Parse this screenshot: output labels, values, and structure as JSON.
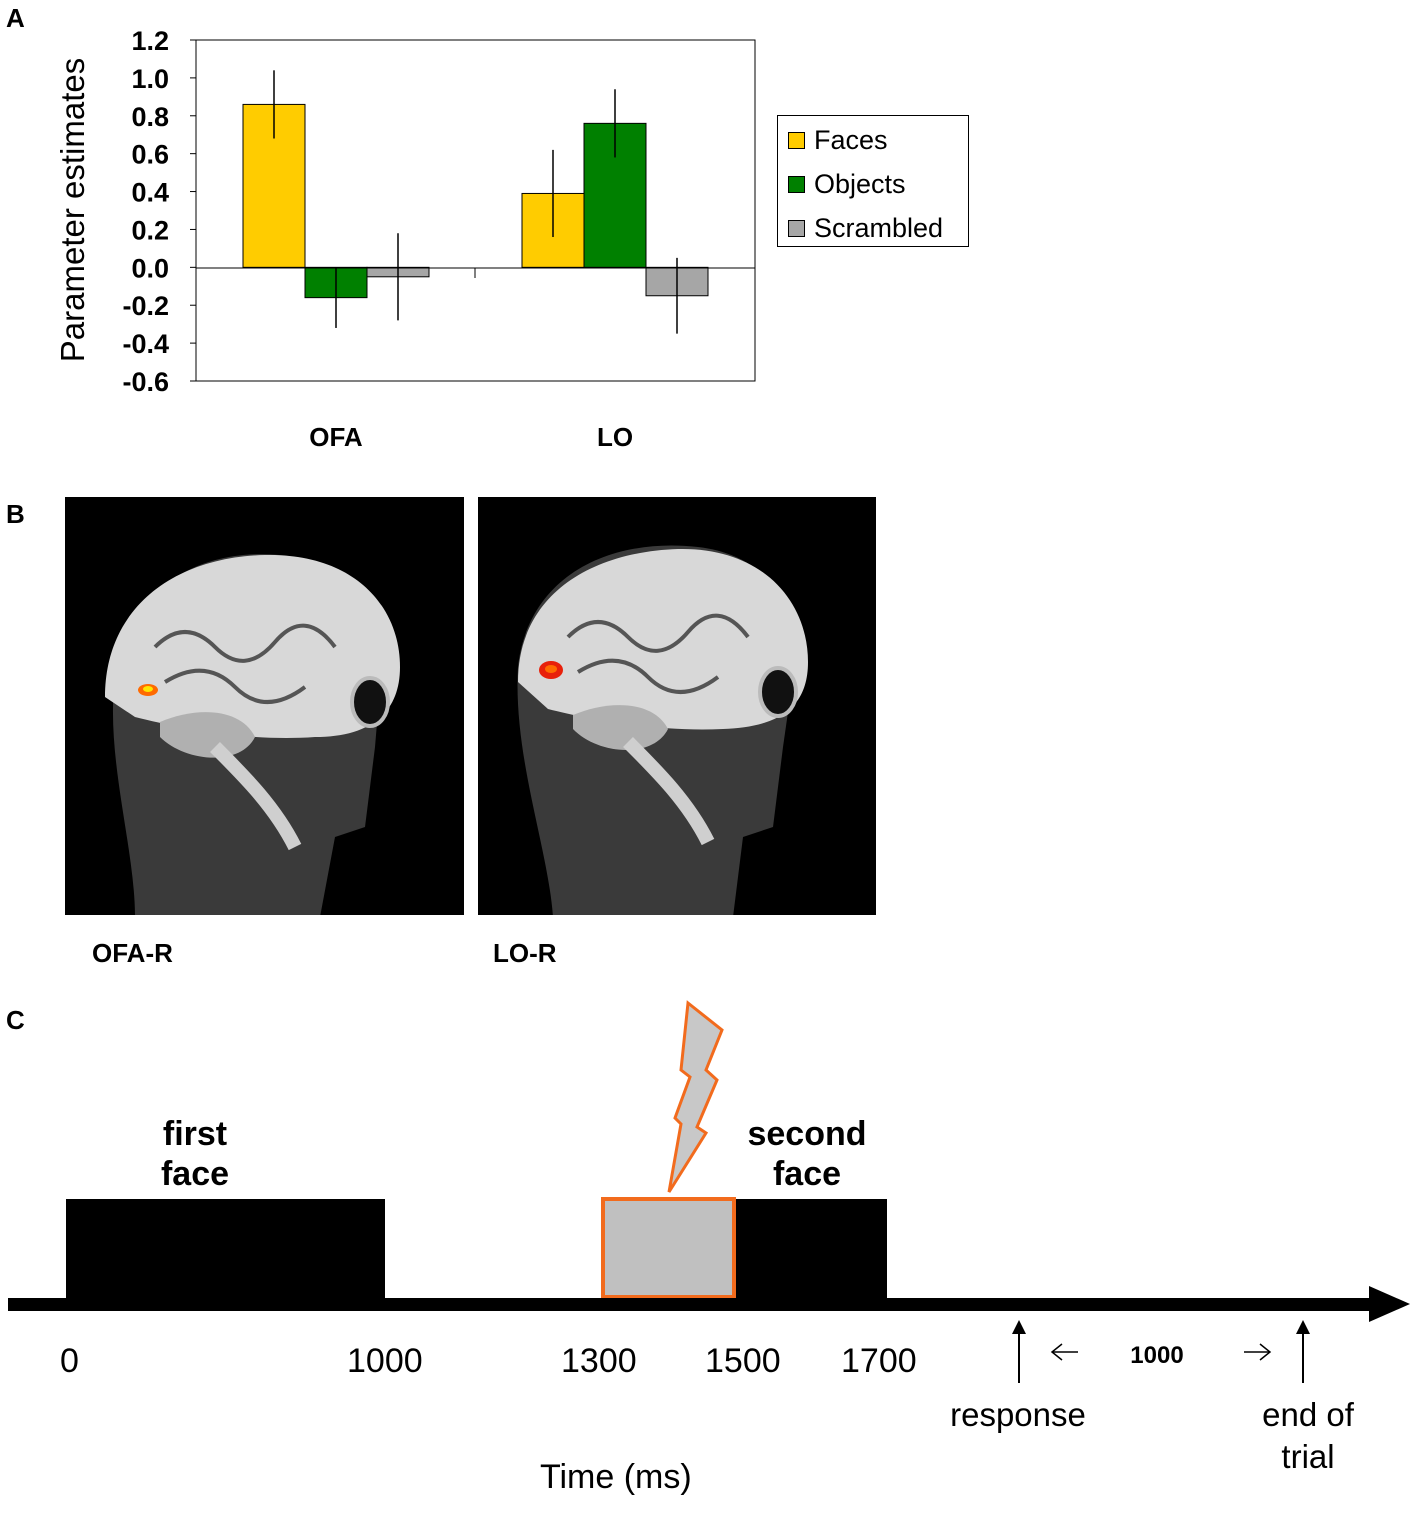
{
  "panels": {
    "a": "A",
    "b": "B",
    "c": "C"
  },
  "chart_data": {
    "type": "bar",
    "ylabel": "Parameter estimates",
    "ylim": [
      -0.6,
      1.2
    ],
    "yticks": [
      "1.2",
      "1.0",
      "0.8",
      "0.6",
      "0.4",
      "0.2",
      "0.0",
      "-0.2",
      "-0.4",
      "-0.6"
    ],
    "categories": [
      "OFA",
      "LO"
    ],
    "series": [
      {
        "name": "Faces",
        "color": "#FFCC00",
        "values": [
          0.86,
          0.39
        ],
        "errors": [
          0.18,
          0.23
        ]
      },
      {
        "name": "Objects",
        "color": "#008000",
        "values": [
          -0.16,
          0.76
        ],
        "errors": [
          0.16,
          0.18
        ]
      },
      {
        "name": "Scrambled",
        "color": "#A6A6A6",
        "values": [
          -0.05,
          -0.15
        ],
        "errors": [
          0.23,
          0.2
        ]
      }
    ],
    "legend_position": "right",
    "grid": false
  },
  "brain_images": [
    {
      "label": "OFA-R",
      "icon": "brain-sagittal-mri-icon"
    },
    {
      "label": "LO-R",
      "icon": "brain-sagittal-mri-icon"
    }
  ],
  "timeline": {
    "xlabel": "Time (ms)",
    "ticks": [
      "0",
      "1000",
      "1300",
      "1500",
      "1700"
    ],
    "events": {
      "first": [
        "first",
        "face"
      ],
      "second": [
        "second",
        "face"
      ]
    },
    "response": "response",
    "end": [
      "end of",
      "trial"
    ],
    "interval": "1000",
    "tms_color": "#F26B1D",
    "mask_color": "#C0C0C0",
    "stim_icon": "lightning-bolt-icon"
  }
}
